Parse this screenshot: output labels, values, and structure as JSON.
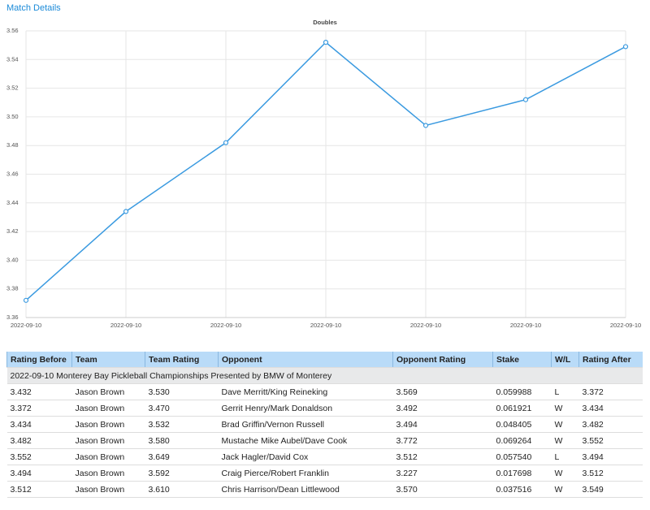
{
  "header": {
    "title": "Match Details"
  },
  "chart_data": {
    "type": "line",
    "title": "Doubles",
    "categories": [
      "2022-09-10",
      "2022-09-10",
      "2022-09-10",
      "2022-09-10",
      "2022-09-10",
      "2022-09-10",
      "2022-09-10"
    ],
    "values": [
      3.372,
      3.434,
      3.482,
      3.552,
      3.494,
      3.512,
      3.549
    ],
    "color": "#3a9ae0",
    "ylim": [
      3.36,
      3.56
    ],
    "yticks": [
      3.36,
      3.38,
      {
        "value": 3.4,
        "label": "3.40"
      },
      3.42,
      3.44,
      3.46,
      3.48,
      {
        "value": 3.5,
        "label": "3.50"
      },
      3.52,
      3.54,
      3.56
    ],
    "grid": true
  },
  "table": {
    "columns": [
      "Rating Before",
      "Team",
      "Team Rating",
      "Opponent",
      "Opponent Rating",
      "Stake",
      "W/L",
      "Rating After"
    ],
    "group": "2022-09-10 Monterey Bay Pickleball Championships Presented by BMW of Monterey",
    "rows": [
      [
        "3.432",
        "Jason Brown",
        "3.530",
        "Dave Merritt/King Reineking",
        "3.569",
        "0.059988",
        "L",
        "3.372"
      ],
      [
        "3.372",
        "Jason Brown",
        "3.470",
        "Gerrit Henry/Mark Donaldson",
        "3.492",
        "0.061921",
        "W",
        "3.434"
      ],
      [
        "3.434",
        "Jason Brown",
        "3.532",
        "Brad Griffin/Vernon Russell",
        "3.494",
        "0.048405",
        "W",
        "3.482"
      ],
      [
        "3.482",
        "Jason Brown",
        "3.580",
        "Mustache Mike Aubel/Dave Cook",
        "3.772",
        "0.069264",
        "W",
        "3.552"
      ],
      [
        "3.552",
        "Jason Brown",
        "3.649",
        "Jack Hagler/David Cox",
        "3.512",
        "0.057540",
        "L",
        "3.494"
      ],
      [
        "3.494",
        "Jason Brown",
        "3.592",
        "Craig Pierce/Robert Franklin",
        "3.227",
        "0.017698",
        "W",
        "3.512"
      ],
      [
        "3.512",
        "Jason Brown",
        "3.610",
        "Chris Harrison/Dean Littlewood",
        "3.570",
        "0.037516",
        "W",
        "3.549"
      ]
    ]
  }
}
